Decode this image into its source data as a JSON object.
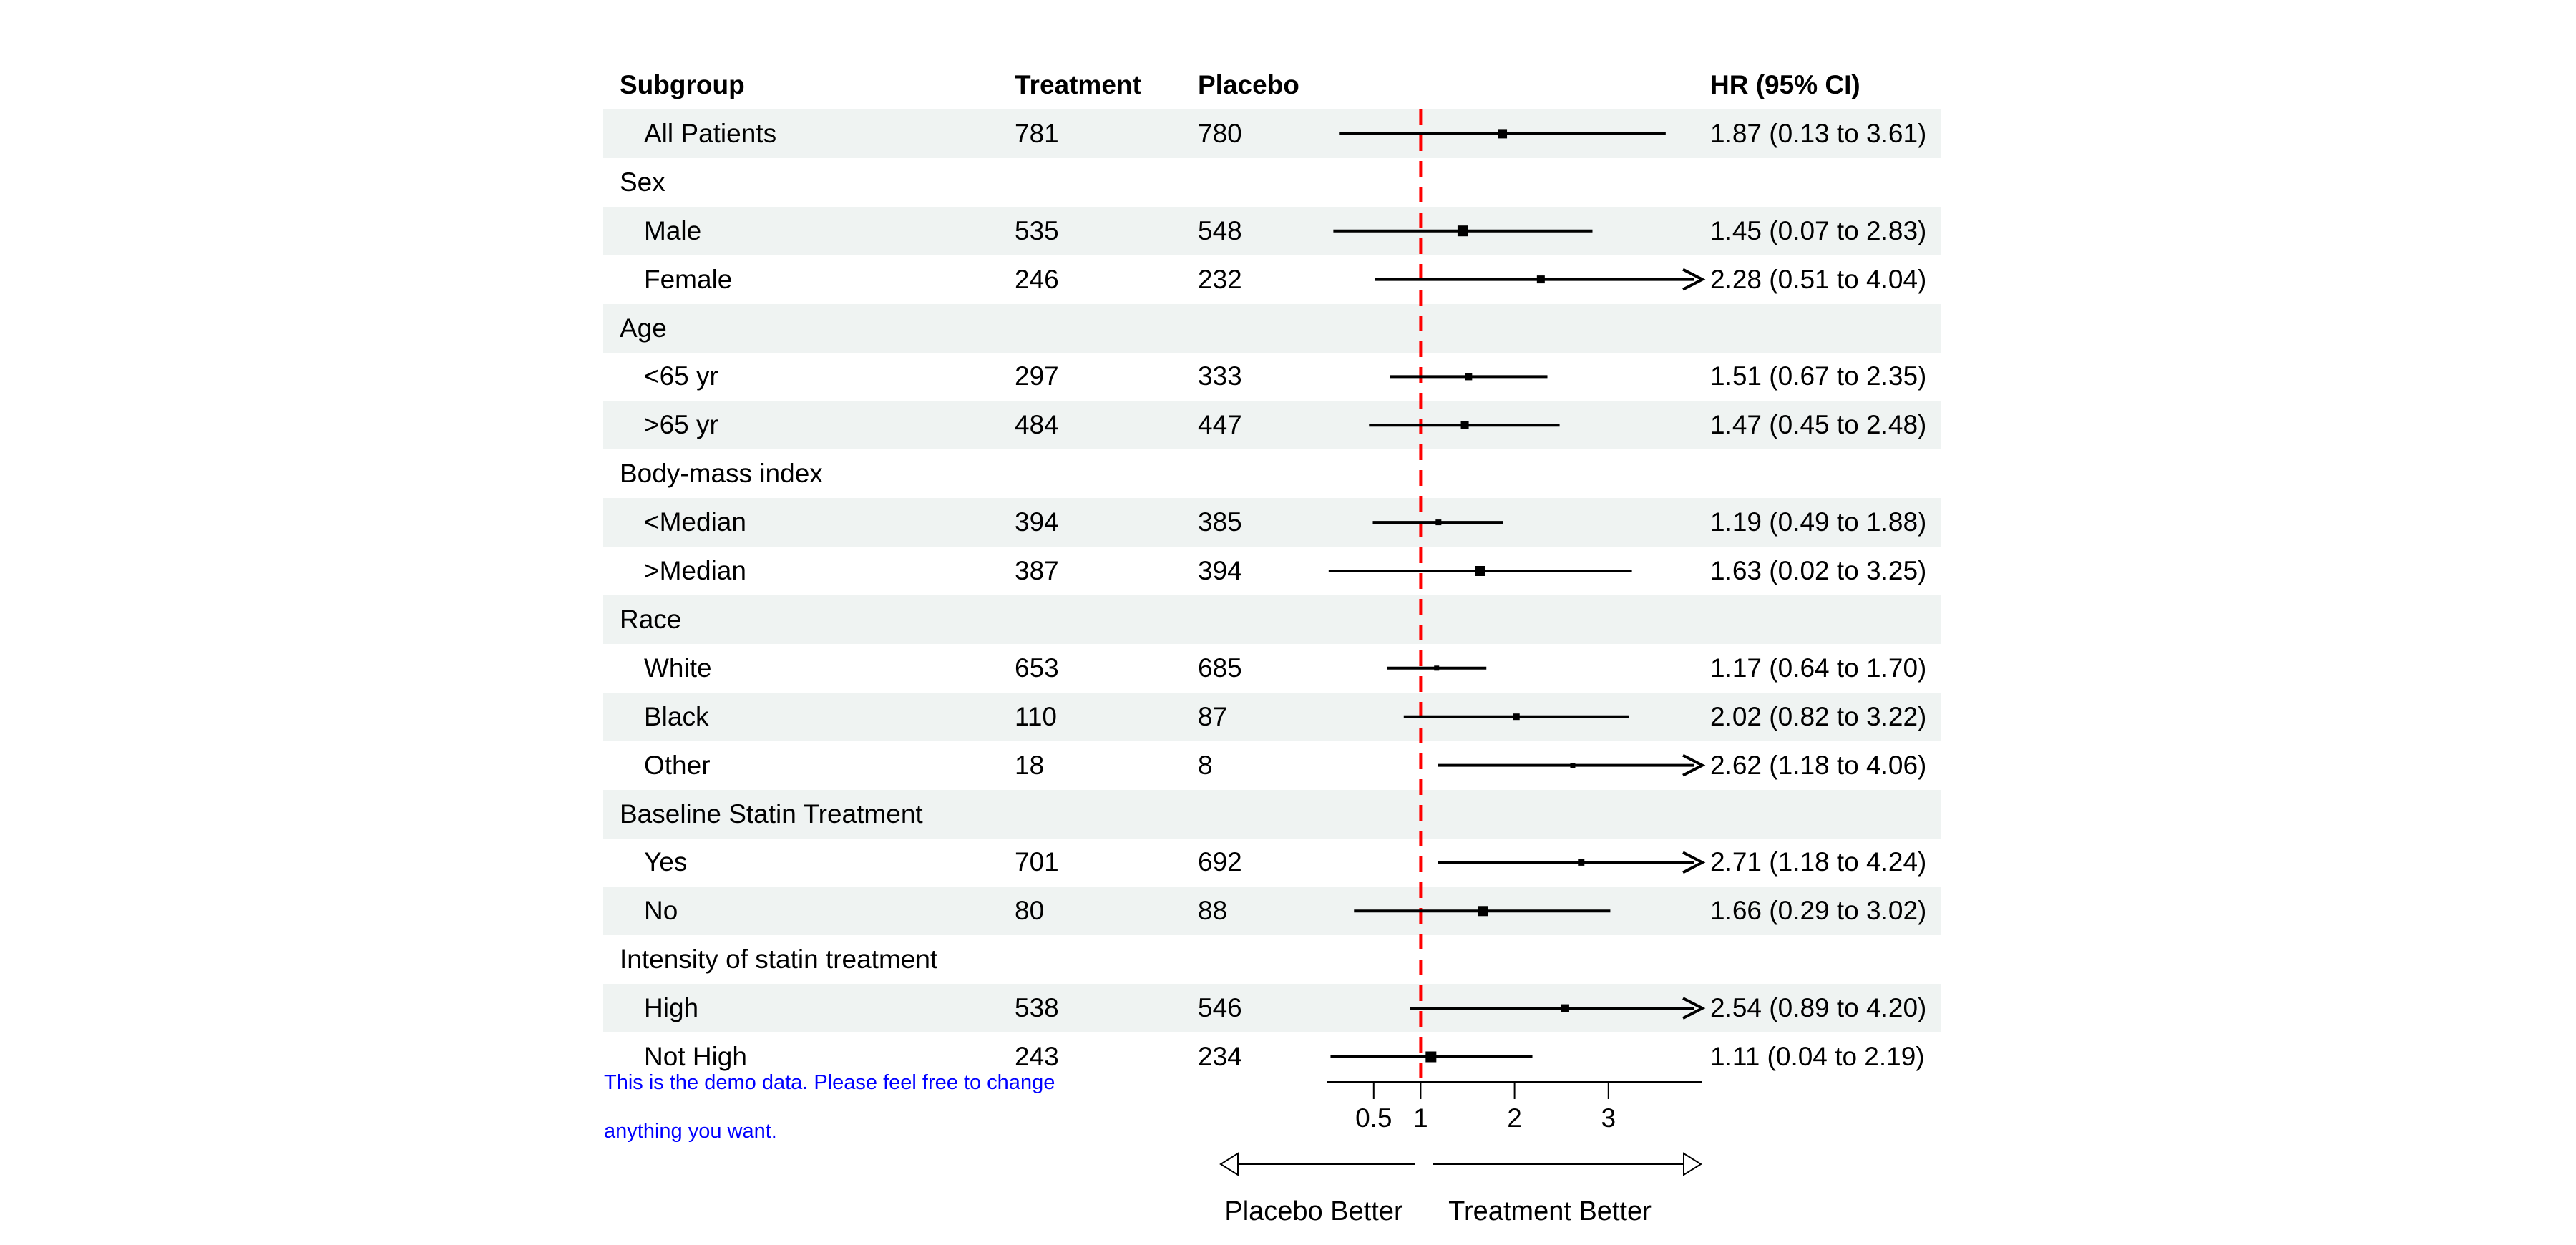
{
  "chart_data": {
    "type": "forest",
    "columns": {
      "subgroup": "Subgroup",
      "treatment": "Treatment",
      "placebo": "Placebo",
      "hr": "HR (95% CI)"
    },
    "axis": {
      "xmin": 0,
      "xmax": 4,
      "ref_line": 1,
      "ticks": [
        0.5,
        1,
        2,
        3
      ],
      "tick_labels": [
        "0.5",
        "1",
        "2",
        "3"
      ]
    },
    "arrow_labels": {
      "left": "Placebo Better",
      "right": "Treatment Better"
    },
    "note_lines": [
      "This is the demo data. Please feel free to change",
      "anything you want."
    ],
    "colors": {
      "band": "#eff3f2",
      "ref_line": "#ff0000",
      "ci": "#000000",
      "note": "#0000ff"
    },
    "rows": [
      {
        "label": "All Patients",
        "section": false,
        "shaded": true,
        "treatment": "781",
        "placebo": "780",
        "est": 1.87,
        "lo": 0.13,
        "hi": 3.61,
        "clipped": false,
        "marker_size": 13,
        "hr_text": "1.87 (0.13 to 3.61)"
      },
      {
        "label": "Sex",
        "section": true,
        "shaded": false
      },
      {
        "label": "Male",
        "section": false,
        "shaded": true,
        "treatment": "535",
        "placebo": "548",
        "est": 1.45,
        "lo": 0.07,
        "hi": 2.83,
        "clipped": false,
        "marker_size": 15,
        "hr_text": "1.45 (0.07 to 2.83)"
      },
      {
        "label": "Female",
        "section": false,
        "shaded": false,
        "treatment": "246",
        "placebo": "232",
        "est": 2.28,
        "lo": 0.51,
        "hi": 4.04,
        "clipped": true,
        "marker_size": 11,
        "hr_text": "2.28 (0.51 to 4.04)"
      },
      {
        "label": "Age",
        "section": true,
        "shaded": true
      },
      {
        "label": "<65 yr",
        "section": false,
        "shaded": false,
        "treatment": "297",
        "placebo": "333",
        "est": 1.51,
        "lo": 0.67,
        "hi": 2.35,
        "clipped": false,
        "marker_size": 10,
        "hr_text": "1.51 (0.67 to 2.35)"
      },
      {
        "label": ">65 yr",
        "section": false,
        "shaded": true,
        "treatment": "484",
        "placebo": "447",
        "est": 1.47,
        "lo": 0.45,
        "hi": 2.48,
        "clipped": false,
        "marker_size": 11,
        "hr_text": "1.47 (0.45 to 2.48)"
      },
      {
        "label": "Body-mass index",
        "section": true,
        "shaded": false
      },
      {
        "label": "<Median",
        "section": false,
        "shaded": true,
        "treatment": "394",
        "placebo": "385",
        "est": 1.19,
        "lo": 0.49,
        "hi": 1.88,
        "clipped": false,
        "marker_size": 8,
        "hr_text": "1.19 (0.49 to 1.88)"
      },
      {
        "label": ">Median",
        "section": false,
        "shaded": false,
        "treatment": "387",
        "placebo": "394",
        "est": 1.63,
        "lo": 0.02,
        "hi": 3.25,
        "clipped": false,
        "marker_size": 14,
        "hr_text": "1.63 (0.02 to 3.25)"
      },
      {
        "label": "Race",
        "section": true,
        "shaded": true
      },
      {
        "label": "White",
        "section": false,
        "shaded": false,
        "treatment": "653",
        "placebo": "685",
        "est": 1.17,
        "lo": 0.64,
        "hi": 1.7,
        "clipped": false,
        "marker_size": 7,
        "hr_text": "1.17 (0.64 to 1.70)"
      },
      {
        "label": "Black",
        "section": false,
        "shaded": true,
        "treatment": "110",
        "placebo": "87",
        "est": 2.02,
        "lo": 0.82,
        "hi": 3.22,
        "clipped": false,
        "marker_size": 9,
        "hr_text": "2.02 (0.82 to 3.22)"
      },
      {
        "label": "Other",
        "section": false,
        "shaded": false,
        "treatment": "18",
        "placebo": "8",
        "est": 2.62,
        "lo": 1.18,
        "hi": 4.06,
        "clipped": true,
        "marker_size": 7,
        "hr_text": "2.62 (1.18 to 4.06)"
      },
      {
        "label": "Baseline Statin Treatment",
        "section": true,
        "shaded": true
      },
      {
        "label": "Yes",
        "section": false,
        "shaded": false,
        "treatment": "701",
        "placebo": "692",
        "est": 2.71,
        "lo": 1.18,
        "hi": 4.24,
        "clipped": true,
        "marker_size": 9,
        "hr_text": "2.71 (1.18 to 4.24)"
      },
      {
        "label": "No",
        "section": false,
        "shaded": true,
        "treatment": "80",
        "placebo": "88",
        "est": 1.66,
        "lo": 0.29,
        "hi": 3.02,
        "clipped": false,
        "marker_size": 14,
        "hr_text": "1.66 (0.29 to 3.02)"
      },
      {
        "label": "Intensity of statin treatment",
        "section": true,
        "shaded": false
      },
      {
        "label": "High",
        "section": false,
        "shaded": true,
        "treatment": "538",
        "placebo": "546",
        "est": 2.54,
        "lo": 0.89,
        "hi": 4.2,
        "clipped": true,
        "marker_size": 11,
        "hr_text": "2.54 (0.89 to 4.20)"
      },
      {
        "label": "Not High",
        "section": false,
        "shaded": false,
        "treatment": "243",
        "placebo": "234",
        "est": 1.11,
        "lo": 0.04,
        "hi": 2.19,
        "clipped": false,
        "marker_size": 15,
        "hr_text": "1.11 (0.04 to 2.19)"
      }
    ]
  }
}
